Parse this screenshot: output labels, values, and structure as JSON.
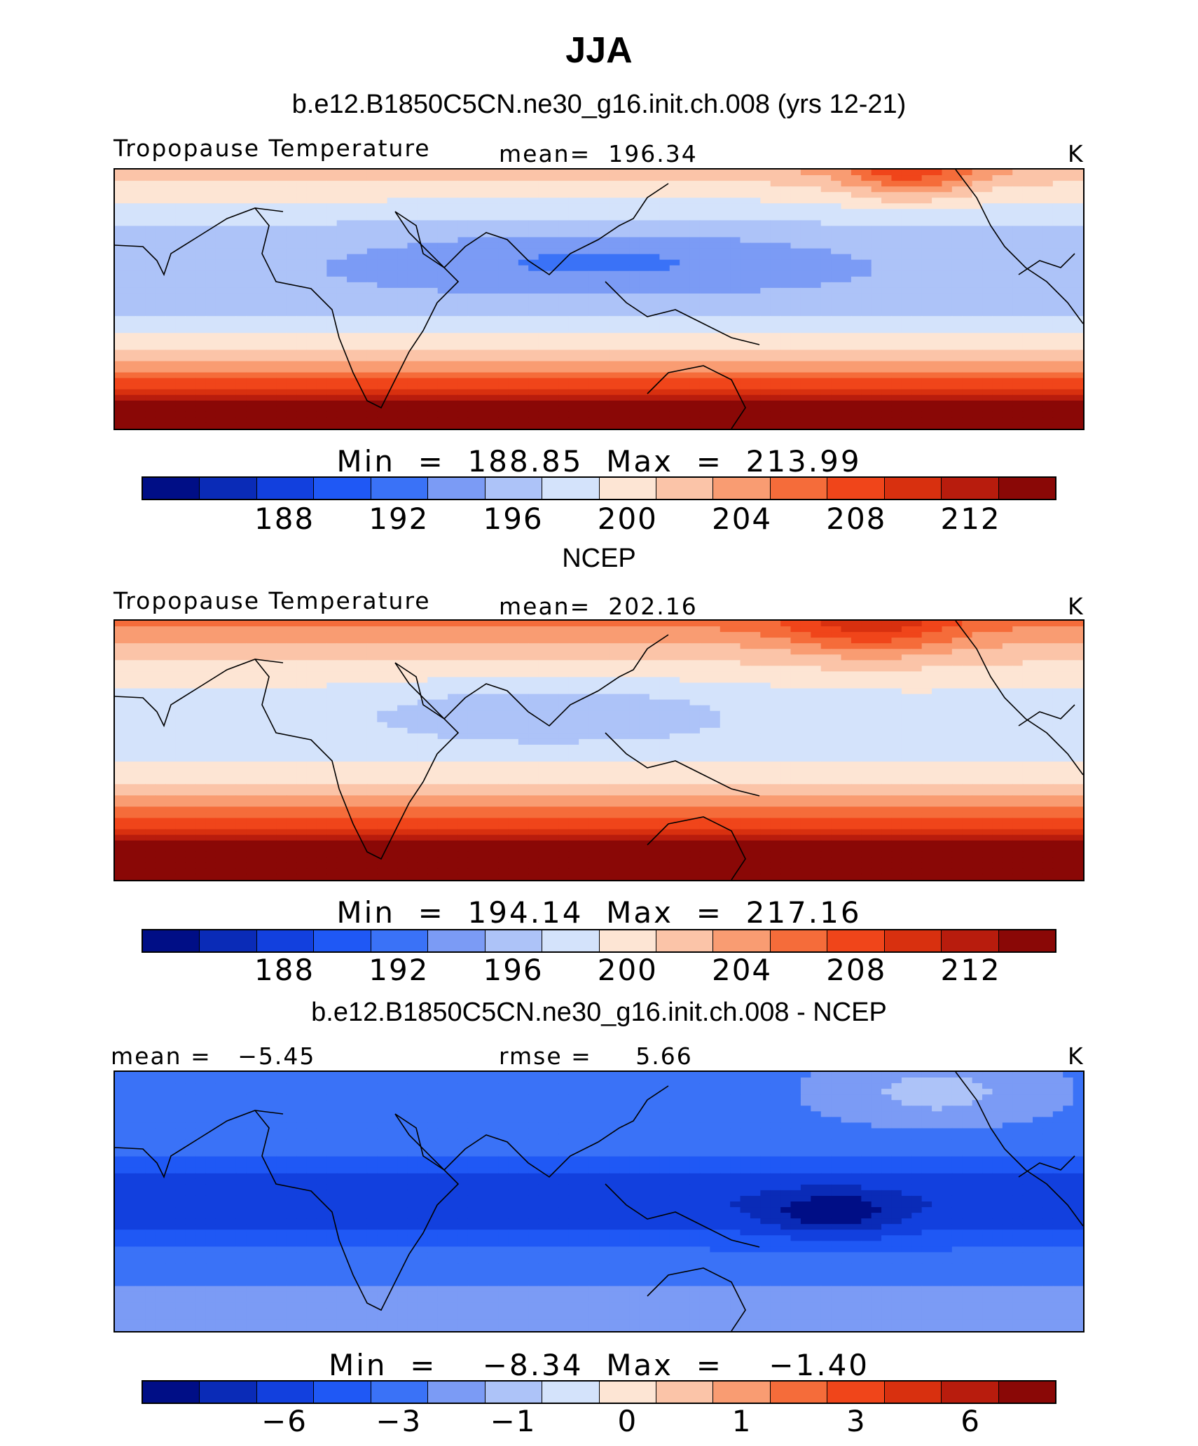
{
  "title": "JJA",
  "units": "K",
  "colors": [
    "#000e86",
    "#0a2bb7",
    "#1240de",
    "#1f58f5",
    "#3a72f7",
    "#7b9bf5",
    "#adc3f8",
    "#d4e3fb",
    "#fde5d4",
    "#fbc4a8",
    "#f99c72",
    "#f56c3a",
    "#f0451a",
    "#d8300f",
    "#b81c0d",
    "#8a0806"
  ],
  "panels": [
    {
      "case_title": "b.e12.B1850C5CN.ne30_g16.init.ch.008 (yrs 12-21)",
      "left_label": "Tropopause Temperature",
      "center_label": "mean=  196.34",
      "right_label": "K",
      "minmax": "Min  =  188.85  Max  =  213.99",
      "ticks": [
        "188",
        "192",
        "196",
        "200",
        "204",
        "208",
        "212"
      ],
      "field": "model"
    },
    {
      "case_title": "NCEP",
      "left_label": "Tropopause Temperature",
      "center_label": "mean=  202.16",
      "right_label": "K",
      "minmax": "Min  =  194.14  Max  =  217.16",
      "ticks": [
        "188",
        "192",
        "196",
        "200",
        "204",
        "208",
        "212"
      ],
      "field": "obs"
    },
    {
      "case_title": "b.e12.B1850C5CN.ne30_g16.init.ch.008 - NCEP",
      "left_label": "mean =   −5.45",
      "center_label": "rmse =     5.66",
      "right_label": "K",
      "minmax": "Min  =    −8.34  Max  =    −1.40",
      "ticks": [
        "−6",
        "−3",
        "−1",
        "0",
        "1",
        "3",
        "6"
      ],
      "field": "diff"
    }
  ]
}
